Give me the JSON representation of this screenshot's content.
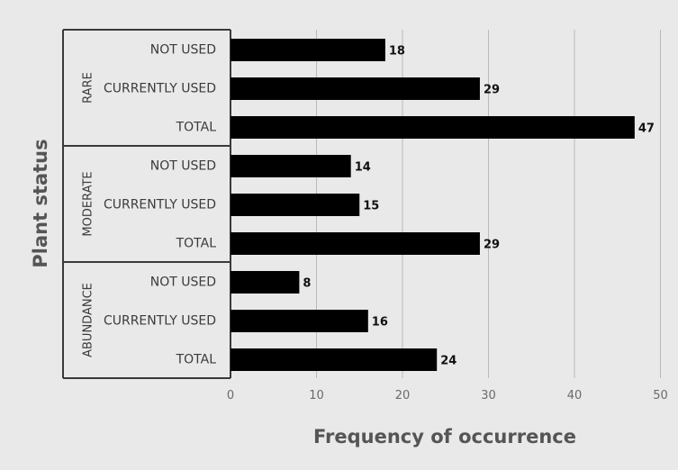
{
  "chart_data": {
    "type": "bar",
    "orientation": "horizontal",
    "xlabel": "Frequency of occurrence",
    "ylabel": "Plant status",
    "xlim": [
      0,
      50
    ],
    "xticks": [
      "0",
      "10",
      "20",
      "30",
      "40",
      "50"
    ],
    "grid": true,
    "legend": "none",
    "bar_color": "#000000",
    "groups": [
      {
        "name": "RARE",
        "categories": [
          "NOT USED",
          "CURRENTLY USED",
          "TOTAL"
        ],
        "values": [
          18,
          29,
          47
        ]
      },
      {
        "name": "MODERATE",
        "categories": [
          "NOT USED",
          "CURRENTLY USED",
          "TOTAL"
        ],
        "values": [
          14,
          15,
          29
        ]
      },
      {
        "name": "ABUNDANCE",
        "categories": [
          "NOT USED",
          "CURRENTLY USED",
          "TOTAL"
        ],
        "values": [
          8,
          16,
          24
        ]
      }
    ]
  }
}
